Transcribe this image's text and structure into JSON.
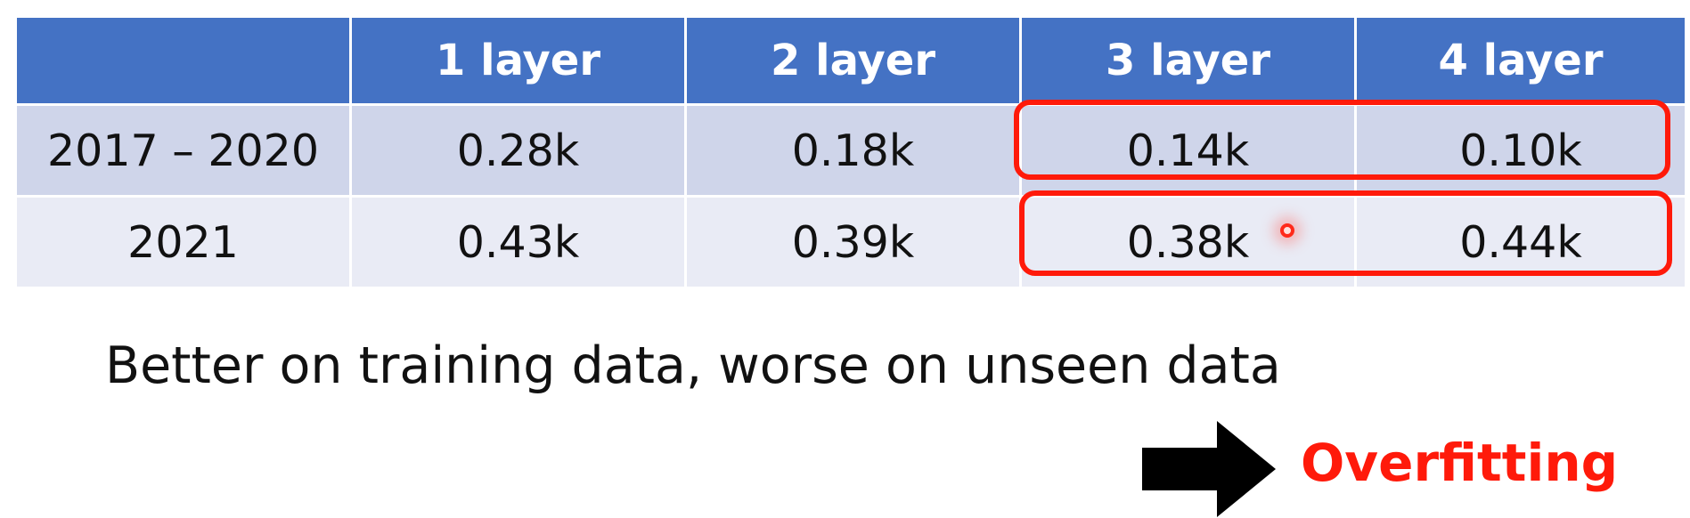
{
  "table": {
    "header": [
      "",
      "1 layer",
      "2 layer",
      "3 layer",
      "4 layer"
    ],
    "rows": [
      [
        "2017 – 2020",
        "0.28k",
        "0.18k",
        "0.14k",
        "0.10k"
      ],
      [
        "2021",
        "0.43k",
        "0.39k",
        "0.38k",
        "0.44k"
      ]
    ]
  },
  "caption": "Better on training data, worse on unseen data",
  "conclusion": "Overfitting",
  "colors": {
    "header_bg": "#4472c4",
    "row_a_bg": "#cfd5ea",
    "row_b_bg": "#e9ebf5",
    "highlight": "#ff1a0a",
    "conclusion_text": "#ff1a0a"
  },
  "icons": {
    "arrow": "right-arrow-icon"
  }
}
